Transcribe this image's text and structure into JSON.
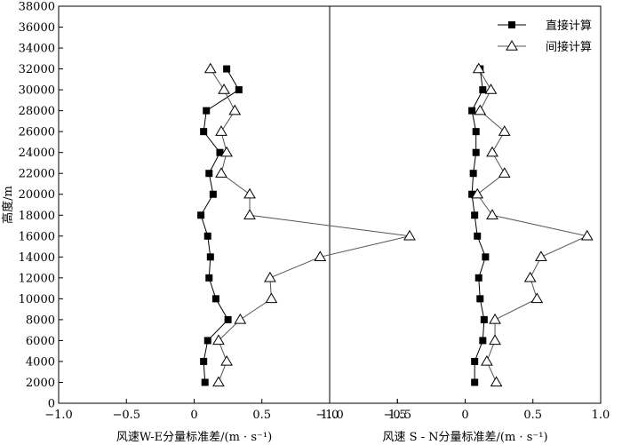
{
  "chart_data": {
    "type": "line",
    "ylabel": "高度/m",
    "ylim": [
      0,
      38000
    ],
    "yticks": [
      0,
      2000,
      4000,
      6000,
      8000,
      10000,
      12000,
      14000,
      16000,
      18000,
      20000,
      22000,
      24000,
      26000,
      28000,
      30000,
      32000,
      34000,
      36000,
      38000
    ],
    "legend": {
      "placement": "top-right",
      "entries": [
        {
          "name": "直接计算",
          "marker": "filled-square"
        },
        {
          "name": "间接计算",
          "marker": "open-triangle"
        }
      ]
    },
    "panels": [
      {
        "xlabel": "风速W-E分量标准差/(m · s⁻¹)",
        "xlim": [
          -1.0,
          1.0
        ],
        "xtick_labels": [
          "−1.0",
          "−0.5",
          "0",
          "0.5",
          "1.0",
          "1.5"
        ],
        "xtick_values": [
          -1.0,
          -0.5,
          0,
          0.5,
          1.0,
          1.5
        ],
        "series": [
          {
            "name": "直接计算",
            "x": [
              0.08,
              0.07,
              0.1,
              0.25,
              0.16,
              0.11,
              0.12,
              0.1,
              0.05,
              0.14,
              0.11,
              0.19,
              0.07,
              0.09,
              0.33,
              0.24
            ],
            "y": [
              2000,
              4000,
              6000,
              8000,
              10000,
              12000,
              14000,
              16000,
              18000,
              20000,
              22000,
              24000,
              26000,
              28000,
              30000,
              32000
            ]
          },
          {
            "name": "间接计算",
            "x": [
              0.18,
              0.24,
              0.18,
              0.34,
              0.57,
              0.56,
              0.93,
              1.59,
              0.41,
              0.41,
              0.2,
              0.24,
              0.2,
              0.3,
              0.22,
              0.12
            ],
            "y": [
              2000,
              4000,
              6000,
              8000,
              10000,
              12000,
              14000,
              16000,
              18000,
              20000,
              22000,
              24000,
              26000,
              28000,
              30000,
              32000
            ]
          }
        ]
      },
      {
        "xlabel": "风速 S - N分量标准差/(m · s⁻¹)",
        "xlim": [
          -1.0,
          1.0
        ],
        "xtick_labels": [
          "−1.0",
          "−0.5",
          "0",
          "0.5",
          "1.0"
        ],
        "xtick_values": [
          -1.0,
          -0.5,
          0,
          0.5,
          1.0
        ],
        "series": [
          {
            "name": "直接计算",
            "x": [
              0.07,
              0.07,
              0.13,
              0.14,
              0.11,
              0.1,
              0.15,
              0.09,
              0.07,
              0.05,
              0.06,
              0.08,
              0.08,
              0.05,
              0.13,
              0.11
            ],
            "y": [
              2000,
              4000,
              6000,
              8000,
              10000,
              12000,
              14000,
              16000,
              18000,
              20000,
              22000,
              24000,
              26000,
              28000,
              30000,
              32000
            ]
          },
          {
            "name": "间接计算",
            "x": [
              0.23,
              0.16,
              0.22,
              0.22,
              0.53,
              0.48,
              0.56,
              0.9,
              0.2,
              0.09,
              0.29,
              0.2,
              0.29,
              0.11,
              0.19,
              0.1
            ],
            "y": [
              2000,
              4000,
              6000,
              8000,
              10000,
              12000,
              14000,
              16000,
              18000,
              20000,
              22000,
              24000,
              26000,
              28000,
              30000,
              32000
            ]
          }
        ]
      }
    ]
  }
}
